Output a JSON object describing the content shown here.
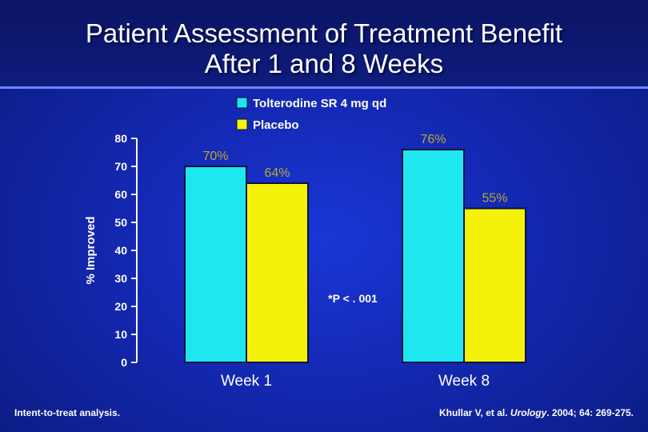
{
  "title": {
    "line1": "Patient Assessment of Treatment Benefit",
    "line2": "After 1 and 8 Weeks"
  },
  "colors": {
    "treatment": "#1ee7f0",
    "placebo": "#f5f20a",
    "value_label": "#b8aa2a"
  },
  "chart_data": {
    "type": "bar",
    "categories": [
      "Week 1",
      "Week 8"
    ],
    "series": [
      {
        "name": "Tolterodine SR 4 mg qd",
        "values": [
          70,
          76
        ],
        "labels": [
          "70%",
          "76%"
        ]
      },
      {
        "name": "Placebo",
        "values": [
          64,
          55
        ],
        "labels": [
          "64%",
          "55%"
        ]
      }
    ],
    "ylabel": "% Improved",
    "ylim": [
      0,
      80
    ],
    "yticks": [
      0,
      10,
      20,
      30,
      40,
      50,
      60,
      70,
      80
    ],
    "legend_position": "top-center",
    "annotation": "*P < . 001"
  },
  "footer": {
    "left": "Intent-to-treat analysis.",
    "right_authors": "Khullar V, et al. ",
    "right_journal": "Urology",
    "right_citation": ". 2004; 64: 269-275."
  }
}
